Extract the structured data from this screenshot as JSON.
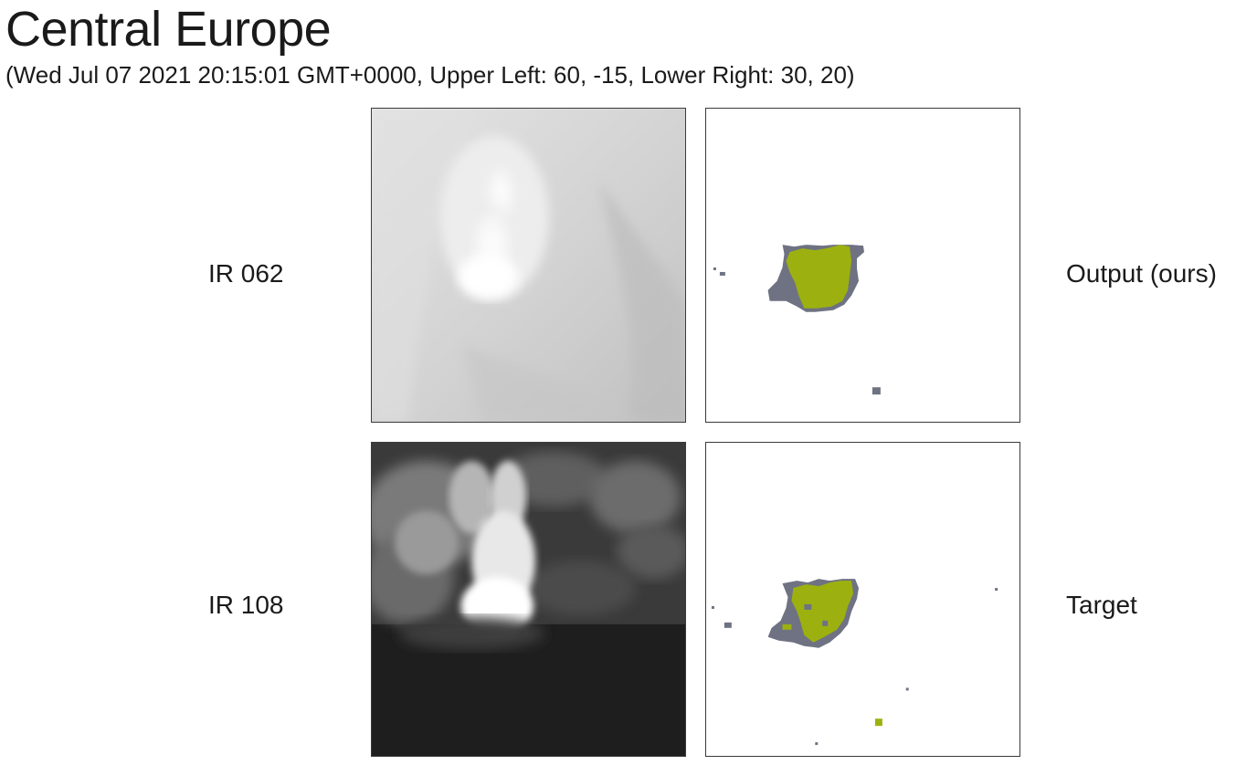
{
  "header": {
    "title": "Central Europe",
    "subtitle": "(Wed Jul 07 2021 20:15:01 GMT+0000, Upper Left: 60, -15, Lower Right: 30, 20)"
  },
  "rows": [
    {
      "left_label": "IR 062",
      "right_label": "Output (ours)"
    },
    {
      "left_label": "IR 108",
      "right_label": "Target"
    }
  ],
  "colors": {
    "mask_primary": "#9cb10f",
    "mask_secondary": "#6e7282",
    "panel_border": "#3a3a3a"
  }
}
